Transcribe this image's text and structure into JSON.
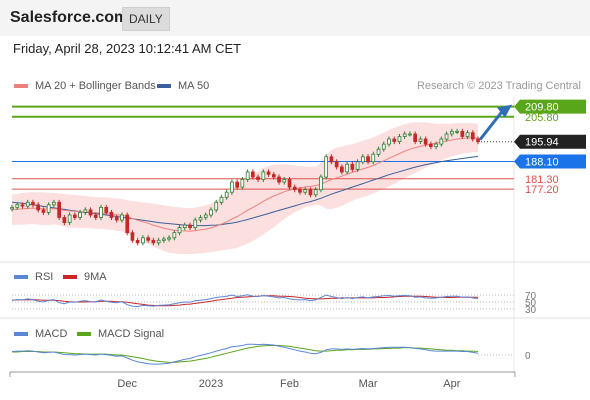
{
  "header": {
    "brand": "Salesforce.com",
    "period": "DAILY"
  },
  "timestamp": "Friday, April 28, 2023 10:12:41 AM CET",
  "credit": "Research © 2023 Trading Central",
  "colors": {
    "ma20": "#f08080",
    "bollinger": "#fcd9d9",
    "ma50": "#3a5f9a",
    "up": "#2e7d32",
    "down": "#c62828",
    "target": "#5aa61a",
    "support": "#1a73e8",
    "resistance": "#d9534f",
    "rsi": "#5b86d6",
    "rsi_ma": "#c62828",
    "macd": "#5b86d6",
    "macd_signal": "#5aa61a"
  },
  "chart_data": [
    {
      "type": "line",
      "panel": "price",
      "title": "",
      "legend": [
        "MA 20 + Bollinger Bands",
        "MA 50"
      ],
      "x_ticks": [
        "Dec",
        "2023",
        "Feb",
        "Mar",
        "Apr"
      ],
      "ylim": [
        150,
        214
      ],
      "price_levels": [
        {
          "label": "209.80",
          "value": 209.8,
          "kind": "target"
        },
        {
          "label": "205.80",
          "value": 205.8,
          "kind": "target-line"
        },
        {
          "label": "195.94",
          "value": 195.94,
          "kind": "last"
        },
        {
          "label": "188.10",
          "value": 188.1,
          "kind": "support"
        },
        {
          "label": "181.30",
          "value": 181.3,
          "kind": "resistance"
        },
        {
          "label": "177.20",
          "value": 177.2,
          "kind": "resistance"
        }
      ],
      "close": [
        170,
        171,
        170.5,
        172,
        171,
        169,
        168,
        171,
        172,
        166,
        164,
        167,
        166,
        168,
        169,
        167,
        166,
        170,
        168,
        166,
        165,
        167,
        160,
        157,
        156,
        158,
        157,
        156,
        157,
        157.5,
        158,
        160,
        162,
        163,
        162,
        165,
        166,
        167,
        169,
        172,
        174,
        176,
        180,
        178,
        181,
        184,
        182,
        181,
        184,
        183,
        182,
        180,
        181,
        178,
        177,
        176,
        177,
        175,
        177,
        182,
        190,
        188,
        186,
        184,
        187,
        185,
        188,
        190,
        188,
        191,
        193,
        195,
        197,
        196,
        198,
        199,
        199,
        196,
        197,
        195,
        194,
        195,
        197,
        199,
        200,
        200,
        198,
        199.5,
        197,
        195.94
      ],
      "ma20": [
        169,
        169.3,
        169.4,
        169.6,
        169.7,
        169.6,
        169.4,
        169.4,
        169.5,
        169.2,
        168.8,
        168.6,
        168.4,
        168.3,
        168.2,
        168.0,
        167.8,
        167.8,
        167.6,
        167.4,
        167.1,
        166.9,
        166.3,
        165.6,
        164.9,
        164.3,
        163.7,
        163.0,
        162.4,
        161.8,
        161.3,
        161.0,
        160.8,
        160.7,
        160.6,
        160.8,
        161.1,
        161.4,
        161.9,
        162.6,
        163.4,
        164.3,
        165.4,
        166.4,
        167.6,
        168.9,
        170.0,
        171.1,
        172.4,
        173.5,
        174.5,
        175.3,
        176.2,
        176.8,
        177.3,
        177.7,
        178.1,
        178.3,
        178.6,
        179.1,
        180.1,
        181.0,
        181.7,
        182.3,
        183.1,
        183.8,
        184.5,
        185.2,
        185.8,
        186.6,
        187.5,
        188.4,
        189.4,
        190.3,
        191.3,
        192.2,
        193.0,
        193.6,
        194.1,
        194.6,
        195.0,
        195.4,
        195.8,
        196.2,
        196.6,
        197.0,
        197.2,
        197.4,
        197.5,
        197.4
      ],
      "bb_upper": [
        175,
        175.4,
        175.7,
        175.9,
        176,
        176,
        175.9,
        175.8,
        175.7,
        175.5,
        175.3,
        175.1,
        174.9,
        174.7,
        174.5,
        174.3,
        174.1,
        174.0,
        173.9,
        173.7,
        173.5,
        173.3,
        172.8,
        172.5,
        172.2,
        172.0,
        171.7,
        171.4,
        171.1,
        170.8,
        170.5,
        170.2,
        170.0,
        169.8,
        169.7,
        169.9,
        170.3,
        170.8,
        171.5,
        172.5,
        173.8,
        175.3,
        177.2,
        178.8,
        180.4,
        182.2,
        183.3,
        184.2,
        185.5,
        186.3,
        186.8,
        186.9,
        187.0,
        186.8,
        186.5,
        186.3,
        186.2,
        186.0,
        186.1,
        187.5,
        190.8,
        192.7,
        193.6,
        194.0,
        194.6,
        195.0,
        195.6,
        196.4,
        196.9,
        197.7,
        198.6,
        199.5,
        200.6,
        201.4,
        202.2,
        202.9,
        203.4,
        203.6,
        203.6,
        203.5,
        203.3,
        203.1,
        203.0,
        203.0,
        203.1,
        203.3,
        203.2,
        203.3,
        203.2,
        203.0
      ],
      "bb_lower": [
        163,
        163.2,
        163.1,
        163.3,
        163.4,
        163.2,
        162.9,
        163.0,
        163.3,
        162.9,
        162.3,
        162.1,
        161.9,
        161.9,
        161.9,
        161.7,
        161.5,
        161.6,
        161.3,
        161.1,
        160.7,
        160.5,
        159.8,
        158.7,
        157.6,
        156.6,
        155.7,
        154.6,
        153.7,
        152.8,
        152.1,
        151.8,
        151.6,
        151.6,
        151.5,
        151.7,
        151.9,
        152.0,
        152.3,
        152.7,
        153.0,
        153.3,
        153.6,
        154.0,
        154.8,
        155.6,
        156.7,
        158.0,
        159.3,
        160.7,
        162.2,
        163.7,
        165.4,
        166.8,
        168.1,
        169.1,
        170.0,
        170.6,
        171.1,
        170.7,
        169.4,
        169.3,
        169.8,
        170.6,
        171.6,
        172.6,
        173.4,
        174.0,
        174.7,
        175.5,
        176.4,
        177.3,
        178.2,
        179.2,
        180.4,
        181.5,
        182.6,
        183.6,
        184.6,
        185.7,
        186.7,
        187.7,
        188.6,
        189.4,
        190.1,
        190.7,
        191.2,
        191.5,
        191.8,
        191.8
      ],
      "ma50": [
        172,
        171.8,
        171.6,
        171.3,
        171.0,
        170.7,
        170.4,
        170.1,
        169.8,
        169.5,
        169.2,
        168.9,
        168.6,
        168.3,
        168.0,
        167.8,
        167.5,
        167.3,
        167.0,
        166.7,
        166.4,
        166.1,
        165.8,
        165.5,
        165.2,
        164.9,
        164.6,
        164.3,
        164.0,
        163.8,
        163.6,
        163.4,
        163.2,
        163.0,
        162.9,
        162.8,
        162.8,
        162.8,
        162.9,
        163.0,
        163.2,
        163.5,
        163.8,
        164.2,
        164.7,
        165.2,
        165.8,
        166.4,
        167.0,
        167.6,
        168.2,
        168.8,
        169.4,
        170.0,
        170.6,
        171.2,
        171.8,
        172.3,
        172.9,
        173.6,
        174.4,
        175.2,
        175.9,
        176.6,
        177.3,
        178.0,
        178.7,
        179.4,
        180.1,
        180.8,
        181.5,
        182.2,
        182.9,
        183.5,
        184.1,
        184.7,
        185.3,
        185.9,
        186.4,
        186.9,
        187.3,
        187.7,
        188.1,
        188.4,
        188.7,
        189.0,
        189.3,
        189.6,
        189.9,
        190.1
      ]
    },
    {
      "type": "line",
      "panel": "rsi",
      "legend": [
        "RSI",
        "9MA"
      ],
      "y_ticks": [
        "70",
        "50",
        "30"
      ],
      "ylim": [
        0,
        100
      ],
      "rsi": [
        55,
        57,
        56,
        59,
        57,
        52,
        50,
        55,
        57,
        48,
        45,
        50,
        49,
        52,
        54,
        51,
        50,
        56,
        52,
        49,
        48,
        51,
        42,
        38,
        37,
        40,
        39,
        38,
        40,
        41,
        42,
        45,
        48,
        50,
        49,
        54,
        55,
        57,
        60,
        63,
        65,
        67,
        70,
        66,
        68,
        71,
        67,
        66,
        69,
        67,
        65,
        62,
        63,
        59,
        57,
        56,
        57,
        54,
        56,
        63,
        70,
        66,
        63,
        60,
        63,
        60,
        63,
        65,
        62,
        65,
        66,
        68,
        69,
        67,
        68,
        69,
        68,
        64,
        65,
        62,
        61,
        62,
        64,
        66,
        67,
        67,
        64,
        65,
        62,
        60
      ],
      "rsi_ma": [
        55,
        56,
        56,
        56,
        57,
        56,
        55,
        55,
        55,
        54,
        52,
        51,
        50,
        50,
        50,
        51,
        51,
        52,
        52,
        52,
        51,
        51,
        49,
        47,
        45,
        43,
        41,
        40,
        39,
        39,
        39,
        40,
        41,
        43,
        44,
        46,
        48,
        50,
        52,
        55,
        57,
        59,
        61,
        63,
        64,
        65,
        66,
        67,
        68,
        68,
        68,
        67,
        67,
        66,
        65,
        63,
        61,
        60,
        59,
        59,
        60,
        61,
        61,
        62,
        62,
        62,
        62,
        62,
        62,
        62,
        63,
        63,
        64,
        65,
        66,
        67,
        67,
        67,
        67,
        66,
        65,
        64,
        64,
        63,
        63,
        64,
        64,
        64,
        64,
        64
      ]
    },
    {
      "type": "line",
      "panel": "macd",
      "legend": [
        "MACD",
        "MACD Signal"
      ],
      "y_ticks": [
        "0"
      ],
      "ylim": [
        -3,
        3
      ],
      "macd": [
        0.8,
        0.9,
        0.9,
        1.0,
        0.9,
        0.7,
        0.5,
        0.6,
        0.7,
        0.4,
        0.1,
        0.1,
        0.0,
        0.1,
        0.2,
        0.1,
        0.0,
        0.2,
        0.1,
        -0.1,
        -0.3,
        -0.2,
        -0.7,
        -1.2,
        -1.6,
        -1.8,
        -2.0,
        -2.1,
        -2.1,
        -2.0,
        -1.9,
        -1.6,
        -1.3,
        -1.0,
        -0.8,
        -0.4,
        -0.1,
        0.2,
        0.5,
        0.9,
        1.2,
        1.5,
        1.9,
        2.0,
        2.2,
        2.5,
        2.5,
        2.4,
        2.5,
        2.4,
        2.3,
        2.0,
        1.8,
        1.5,
        1.2,
        0.9,
        0.7,
        0.4,
        0.3,
        0.6,
        1.2,
        1.4,
        1.4,
        1.3,
        1.4,
        1.3,
        1.4,
        1.5,
        1.4,
        1.5,
        1.6,
        1.7,
        1.8,
        1.8,
        1.8,
        1.8,
        1.7,
        1.5,
        1.4,
        1.2,
        1.0,
        0.9,
        0.9,
        0.9,
        0.9,
        0.9,
        0.8,
        0.8,
        0.6,
        0.4
      ],
      "signal": [
        0.7,
        0.7,
        0.8,
        0.8,
        0.8,
        0.8,
        0.7,
        0.7,
        0.7,
        0.6,
        0.5,
        0.4,
        0.3,
        0.3,
        0.2,
        0.2,
        0.2,
        0.2,
        0.2,
        0.1,
        0.0,
        0.0,
        -0.2,
        -0.4,
        -0.6,
        -0.8,
        -1.1,
        -1.3,
        -1.5,
        -1.6,
        -1.7,
        -1.7,
        -1.6,
        -1.5,
        -1.4,
        -1.2,
        -1.0,
        -0.8,
        -0.5,
        -0.2,
        0.1,
        0.4,
        0.7,
        1.0,
        1.3,
        1.6,
        1.8,
        2.0,
        2.1,
        2.2,
        2.2,
        2.2,
        2.1,
        2.0,
        1.8,
        1.6,
        1.4,
        1.2,
        1.0,
        0.9,
        0.9,
        1.0,
        1.1,
        1.1,
        1.2,
        1.2,
        1.3,
        1.3,
        1.3,
        1.4,
        1.4,
        1.5,
        1.5,
        1.6,
        1.6,
        1.7,
        1.7,
        1.6,
        1.6,
        1.5,
        1.4,
        1.3,
        1.2,
        1.1,
        1.1,
        1.0,
        1.0,
        0.9,
        0.9,
        0.8
      ]
    }
  ]
}
